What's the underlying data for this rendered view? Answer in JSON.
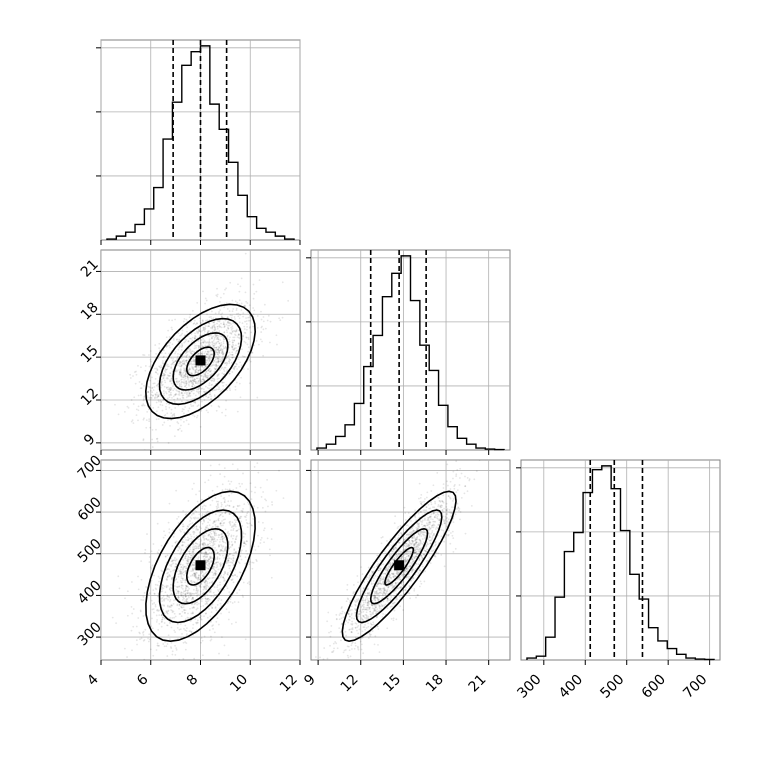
{
  "chart_data": {
    "type": "corner",
    "parameters": [
      {
        "id": "p1",
        "range": [
          4,
          12
        ],
        "ticks": [
          "4",
          "6",
          "8",
          "10",
          "12"
        ],
        "quantiles": [
          6.9,
          8.0,
          9.05
        ],
        "hist": [
          0.005,
          0.02,
          0.04,
          0.08,
          0.16,
          0.27,
          0.52,
          0.71,
          0.9,
          0.97,
          1.0,
          0.7,
          0.57,
          0.4,
          0.23,
          0.12,
          0.06,
          0.04,
          0.02,
          0.005
        ]
      },
      {
        "id": "p2",
        "range": [
          8.5,
          22.5
        ],
        "ticks": [
          "9",
          "12",
          "15",
          "18",
          "21"
        ],
        "quantiles": [
          12.7,
          14.7,
          16.6
        ],
        "hist": [
          0.01,
          0.03,
          0.07,
          0.13,
          0.24,
          0.43,
          0.59,
          0.79,
          0.91,
          1.0,
          0.77,
          0.54,
          0.41,
          0.23,
          0.12,
          0.06,
          0.03,
          0.01,
          0.005,
          0.002
        ]
      },
      {
        "id": "p3",
        "range": [
          245,
          725
        ],
        "ticks": [
          "300",
          "400",
          "500",
          "600",
          "700"
        ],
        "quantiles": [
          412,
          470,
          538
        ],
        "hist": [
          0.01,
          0.02,
          0.12,
          0.33,
          0.57,
          0.67,
          0.88,
          1.0,
          1.02,
          0.9,
          0.68,
          0.45,
          0.32,
          0.17,
          0.1,
          0.06,
          0.03,
          0.01,
          0.005,
          0.003
        ]
      }
    ],
    "pairs": [
      {
        "x": "p1",
        "y": "p2",
        "mean": [
          8.0,
          14.7
        ],
        "std": [
          1.1,
          2.0
        ],
        "corr": 0.55
      },
      {
        "x": "p1",
        "y": "p3",
        "mean": [
          8.0,
          470
        ],
        "std": [
          1.1,
          90
        ],
        "corr": 0.55
      },
      {
        "x": "p2",
        "y": "p3",
        "mean": [
          14.7,
          470
        ],
        "std": [
          2.0,
          90
        ],
        "corr": 0.88
      }
    ],
    "contour_levels": [
      0.5,
      1.0,
      1.5,
      2.0
    ],
    "colors": {
      "line": "#000000",
      "grid": "#b0b0b0",
      "points": "#888888"
    }
  }
}
